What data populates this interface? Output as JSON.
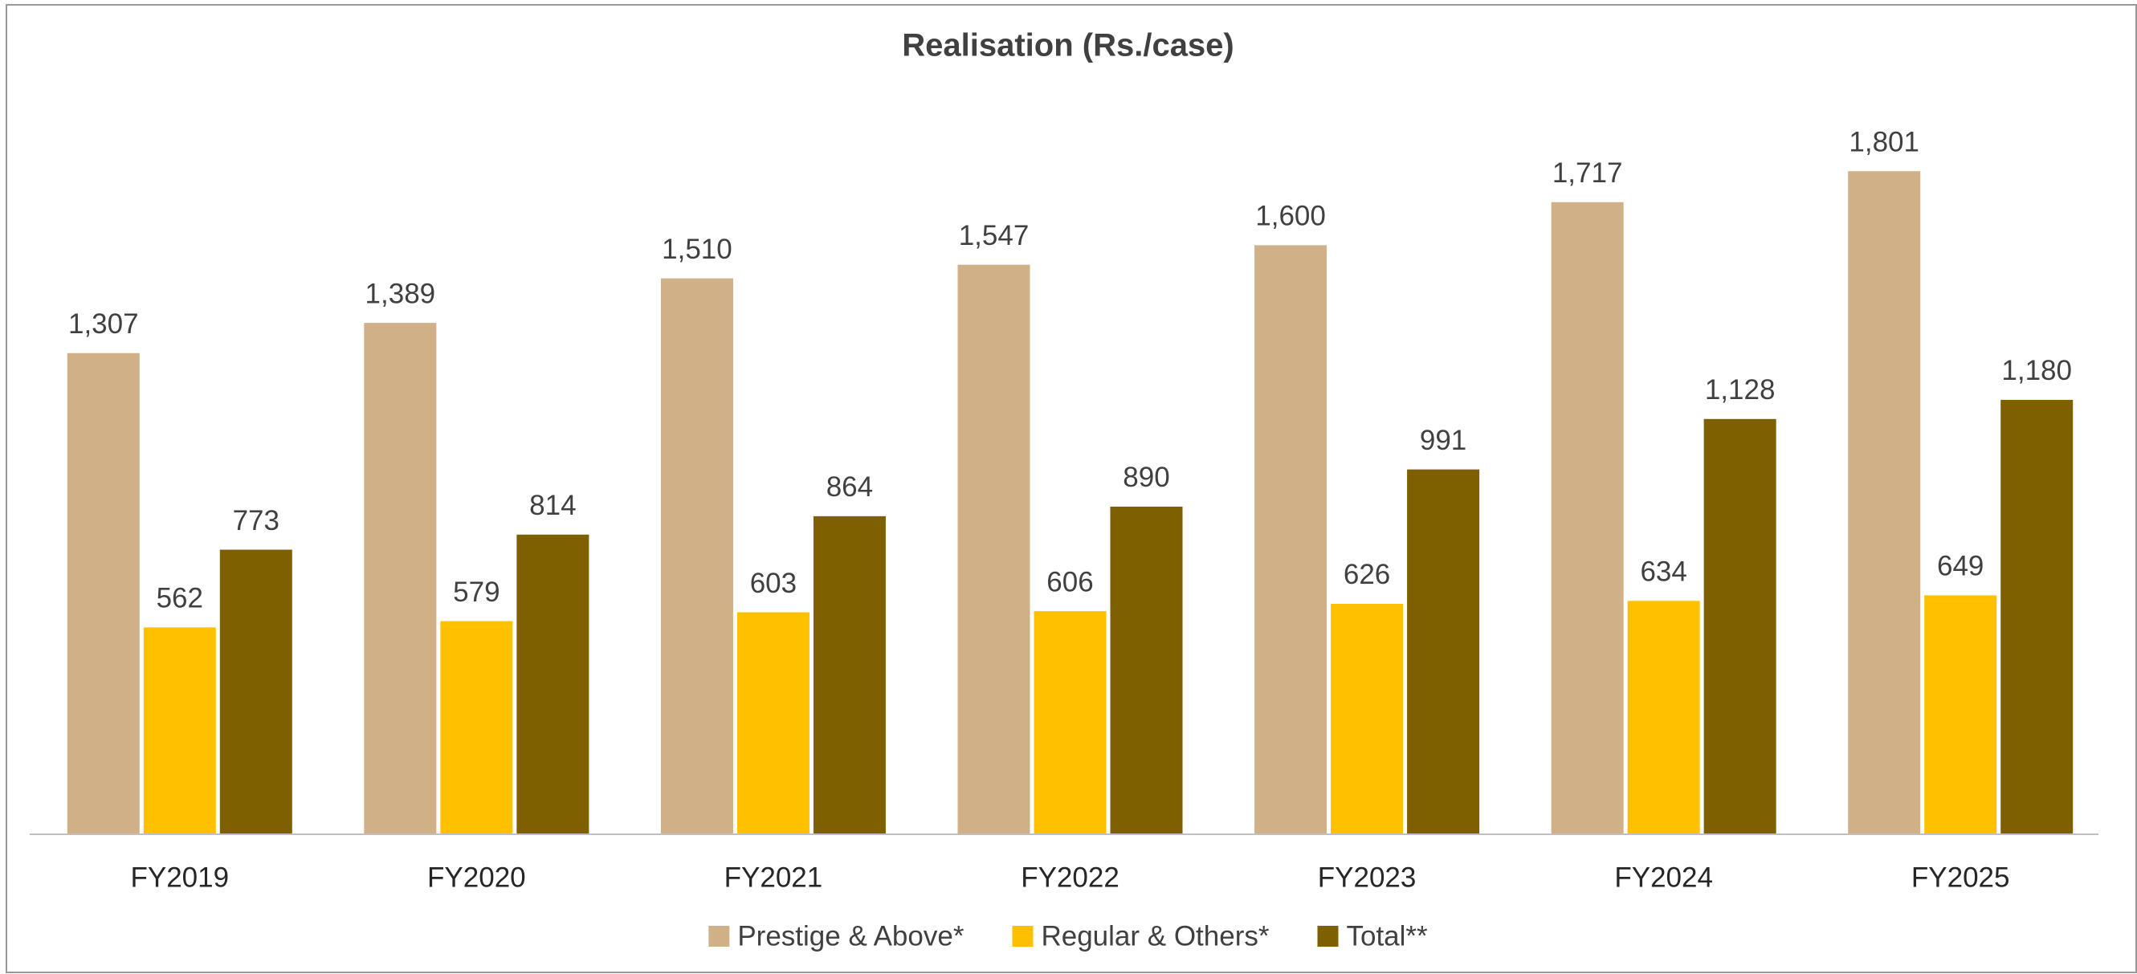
{
  "chart_data": {
    "type": "bar",
    "title": "Realisation (Rs./case)",
    "categories": [
      "FY2019",
      "FY2020",
      "FY2021",
      "FY2022",
      "FY2023",
      "FY2024",
      "FY2025"
    ],
    "series": [
      {
        "name": "Prestige & Above*",
        "color": "#cfb087",
        "values": [
          1307,
          1389,
          1510,
          1547,
          1600,
          1717,
          1801
        ],
        "value_labels": [
          "1,307",
          "1,389",
          "1,510",
          "1,547",
          "1,600",
          "1,717",
          "1,801"
        ]
      },
      {
        "name": "Regular & Others*",
        "color": "#ffc000",
        "values": [
          562,
          579,
          603,
          606,
          626,
          634,
          649
        ]
      },
      {
        "name": "Total**",
        "color": "#7f6000",
        "values": [
          773,
          814,
          864,
          890,
          991,
          1128,
          1180
        ],
        "value_labels": [
          "773",
          "814",
          "864",
          "890",
          "991",
          "1,128",
          "1,180"
        ]
      }
    ],
    "ylim": [
      0,
      2000
    ],
    "legend": "bottom"
  }
}
